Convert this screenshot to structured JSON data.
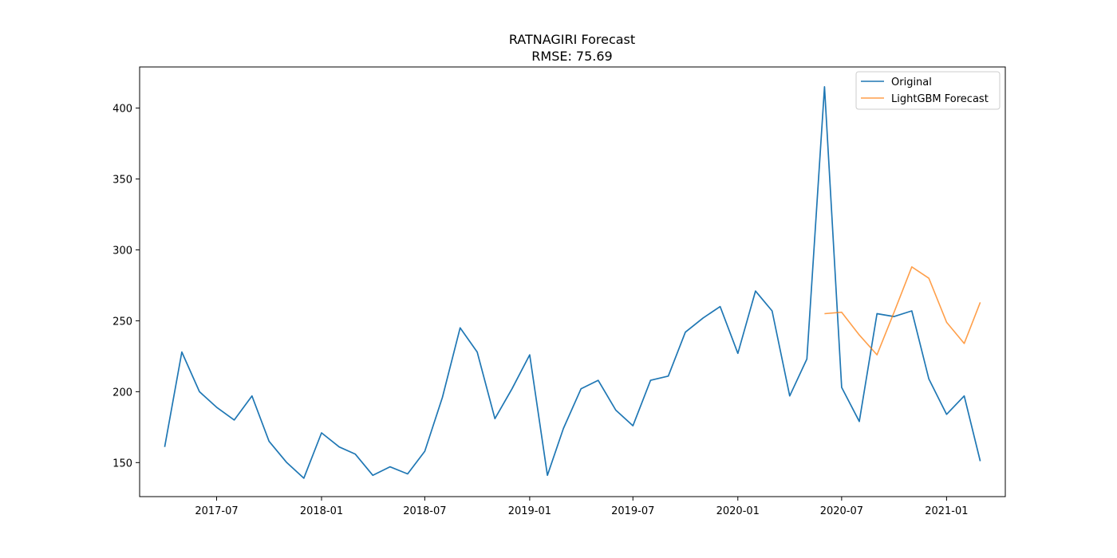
{
  "chart_data": {
    "type": "line",
    "title": "RATNAGIRI Forecast",
    "subtitle": "RMSE: 75.69",
    "xlabel": "",
    "ylabel": "",
    "x_range": [
      "2017-02-16",
      "2021-04-14"
    ],
    "ylim": [
      126,
      429
    ],
    "grid": false,
    "legend_position": "top-right",
    "x_ticks": [
      "2017-07",
      "2018-01",
      "2018-07",
      "2019-01",
      "2019-07",
      "2020-01",
      "2020-07",
      "2021-01"
    ],
    "y_ticks": [
      150,
      200,
      250,
      300,
      350,
      400
    ],
    "series": [
      {
        "name": "Original",
        "color": "#1f77b4",
        "x": [
          "2017-04",
          "2017-05",
          "2017-06",
          "2017-07",
          "2017-08",
          "2017-09",
          "2017-10",
          "2017-11",
          "2017-12",
          "2018-01",
          "2018-02",
          "2018-03",
          "2018-04",
          "2018-05",
          "2018-06",
          "2018-07",
          "2018-08",
          "2018-09",
          "2018-10",
          "2018-11",
          "2018-12",
          "2019-01",
          "2019-02",
          "2019-03",
          "2019-04",
          "2019-05",
          "2019-06",
          "2019-07",
          "2019-08",
          "2019-09",
          "2019-10",
          "2019-11",
          "2019-12",
          "2020-01",
          "2020-02",
          "2020-03",
          "2020-04",
          "2020-05",
          "2020-06",
          "2020-07",
          "2020-08",
          "2020-09",
          "2020-10",
          "2020-11",
          "2020-12",
          "2021-01",
          "2021-02",
          "2021-03"
        ],
        "values": [
          161,
          228,
          200,
          189,
          180,
          197,
          165,
          150,
          139,
          171,
          161,
          156,
          141,
          147,
          142,
          158,
          196,
          245,
          228,
          181,
          202,
          226,
          141,
          174,
          202,
          208,
          187,
          176,
          208,
          211,
          242,
          252,
          260,
          227,
          271,
          257,
          197,
          223,
          415,
          203,
          179,
          255,
          253,
          257,
          209,
          184,
          197,
          151
        ]
      },
      {
        "name": "LightGBM Forecast",
        "color": "#ff7f0e",
        "x": [
          "2020-06",
          "2020-07",
          "2020-08",
          "2020-09",
          "2020-10",
          "2020-11",
          "2020-12",
          "2021-01",
          "2021-02",
          "2021-03"
        ],
        "values": [
          255,
          256,
          240,
          226,
          256,
          288,
          280,
          249,
          234,
          263
        ]
      }
    ]
  }
}
